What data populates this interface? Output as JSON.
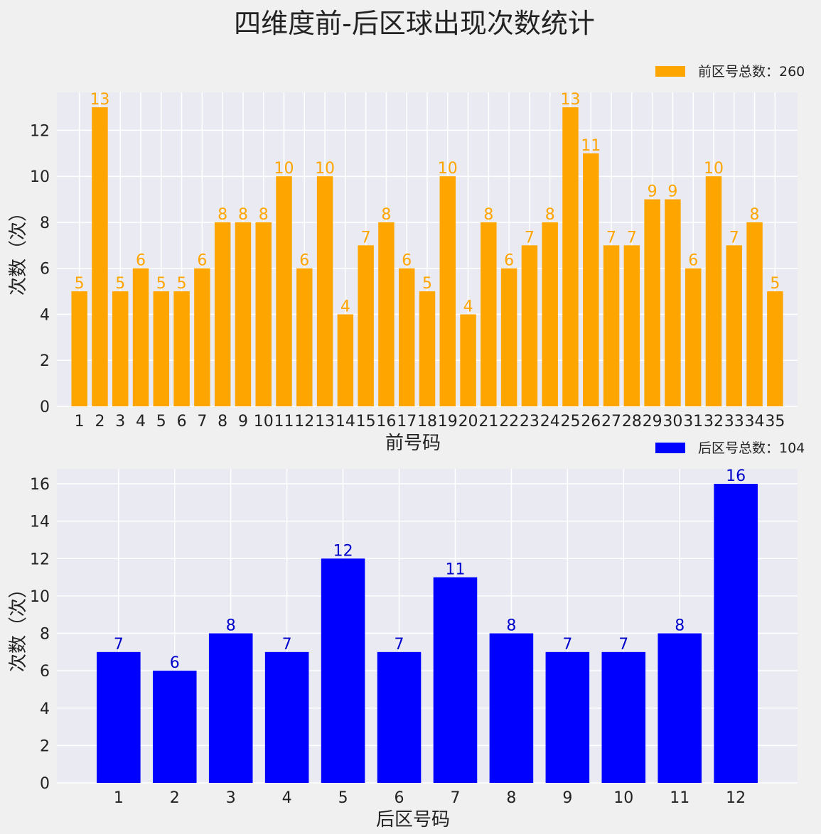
{
  "figure_title": "四维度前-后区球出现次数统计",
  "chart_data": [
    {
      "type": "bar",
      "id": "front",
      "title": "",
      "xlabel": "前号码",
      "ylabel": "次数（次）",
      "color": "#ffa500",
      "label_color": "#ffa500",
      "legend": "前区号总数：260",
      "legend_position": "top-right",
      "grid": true,
      "ylim": [
        0,
        13.65
      ],
      "yticks": [
        0,
        2,
        4,
        6,
        8,
        10,
        12
      ],
      "categories": [
        "1",
        "2",
        "3",
        "4",
        "5",
        "6",
        "7",
        "8",
        "9",
        "10",
        "11",
        "12",
        "13",
        "14",
        "15",
        "16",
        "17",
        "18",
        "19",
        "20",
        "21",
        "22",
        "23",
        "24",
        "25",
        "26",
        "27",
        "28",
        "29",
        "30",
        "31",
        "32",
        "33",
        "34",
        "35"
      ],
      "values": [
        5,
        13,
        5,
        6,
        5,
        5,
        6,
        8,
        8,
        8,
        10,
        6,
        10,
        4,
        7,
        8,
        6,
        5,
        10,
        4,
        8,
        6,
        7,
        8,
        13,
        11,
        7,
        7,
        9,
        9,
        6,
        10,
        7,
        8,
        5
      ]
    },
    {
      "type": "bar",
      "id": "back",
      "title": "",
      "xlabel": "后区号码",
      "ylabel": "次数（次）",
      "color": "#0000ff",
      "label_color": "#0000cc",
      "legend": "后区号总数：104",
      "legend_position": "top-right",
      "grid": true,
      "ylim": [
        0,
        16.8
      ],
      "yticks": [
        0,
        2,
        4,
        6,
        8,
        10,
        12,
        14,
        16
      ],
      "categories": [
        "1",
        "2",
        "3",
        "4",
        "5",
        "6",
        "7",
        "8",
        "9",
        "10",
        "11",
        "12"
      ],
      "values": [
        7,
        6,
        8,
        7,
        12,
        7,
        11,
        8,
        7,
        7,
        8,
        16
      ]
    }
  ]
}
